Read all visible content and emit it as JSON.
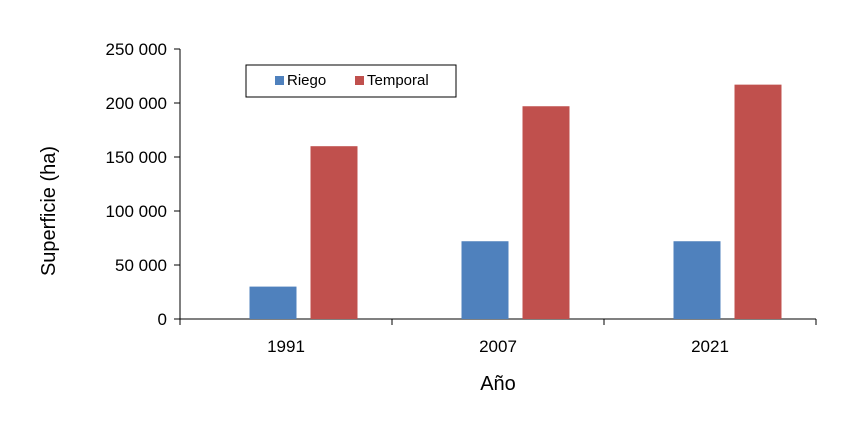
{
  "chart_data": {
    "type": "bar",
    "title": "",
    "xlabel": "Año",
    "ylabel": "Superficie (ha)",
    "categories": [
      "1991",
      "2007",
      "2021"
    ],
    "series": [
      {
        "name": "Riego",
        "color": "#4F81BD",
        "values": [
          30000,
          72000,
          72000
        ]
      },
      {
        "name": "Temporal",
        "color": "#C0504D",
        "values": [
          160000,
          197000,
          217000
        ]
      }
    ],
    "ylim": [
      0,
      250000
    ],
    "yticks": [
      {
        "value": 0,
        "label": "0"
      },
      {
        "value": 50000,
        "label": "50 000"
      },
      {
        "value": 100000,
        "label": "100 000"
      },
      {
        "value": 150000,
        "label": "150 000"
      },
      {
        "value": 200000,
        "label": "200 000"
      },
      {
        "value": 250000,
        "label": "250 000"
      }
    ],
    "grid": false,
    "legend_position": "top-left"
  }
}
